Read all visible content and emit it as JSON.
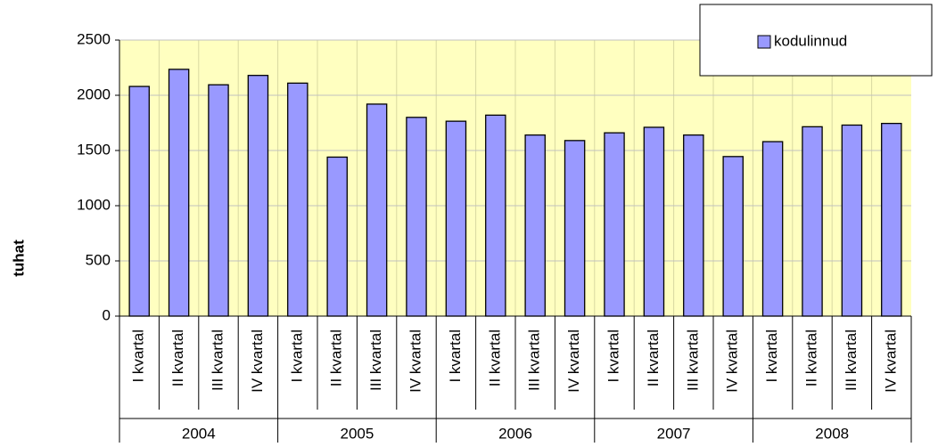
{
  "chart_data": {
    "type": "bar",
    "y_label": "tuhat",
    "categories": [
      "I kvartal",
      "II kvartal",
      "III kvartal",
      "IV kvartal",
      "I kvartal",
      "II kvartal",
      "III kvartal",
      "IV kvartal",
      "I kvartal",
      "II kvartal",
      "III kvartal",
      "IV kvartal",
      "I kvartal",
      "II kvartal",
      "III kvartal",
      "IV kvartal",
      "I kvartal",
      "II kvartal",
      "III kvartal",
      "IV kvartal"
    ],
    "group_labels": [
      "2004",
      "2005",
      "2006",
      "2007",
      "2008"
    ],
    "series": [
      {
        "name": "kodulinnud",
        "color": "#9999ff",
        "values": [
          2080,
          2235,
          2095,
          2180,
          2110,
          1440,
          1920,
          1800,
          1765,
          1820,
          1640,
          1590,
          1660,
          1710,
          1640,
          1445,
          1580,
          1715,
          1730,
          1745
        ]
      }
    ],
    "ylim": [
      0,
      2500
    ],
    "yticks": [
      0,
      500,
      1000,
      1500,
      2000,
      2500
    ],
    "grid": true,
    "legend": "top-right"
  }
}
